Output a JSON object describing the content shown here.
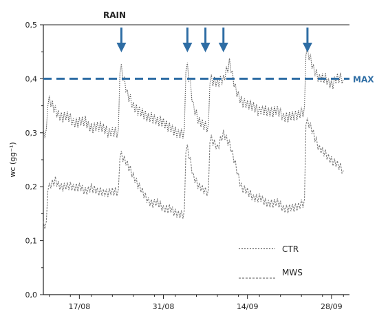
{
  "chart_data": {
    "type": "line",
    "title": "",
    "xlabel": "",
    "ylabel": "wc (gg⁻¹)",
    "ylim": [
      0.0,
      0.5
    ],
    "yticks": [
      "0,0",
      "0,1",
      "0,2",
      "0,3",
      "0,4",
      "0,5"
    ],
    "xlim": [
      "2008-08-11",
      "2008-10-01"
    ],
    "xticks": [
      {
        "date": "2008-08-17",
        "label": "17/08"
      },
      {
        "date": "2008-08-31",
        "label": "31/08"
      },
      {
        "date": "2008-09-14",
        "label": "14/09"
      },
      {
        "date": "2008-09-28",
        "label": "28/09"
      }
    ],
    "grid": false,
    "legend_position": "bottom-right",
    "reference_line": {
      "label": "MAX",
      "y": 0.4,
      "color": "#2e6da4"
    },
    "rain_label": "RAIN",
    "rain_events": [
      "2008-08-24",
      "2008-09-04",
      "2008-09-07",
      "2008-09-10",
      "2008-09-24"
    ],
    "arrow_color": "#2e6da4",
    "series": [
      {
        "name": "CTR",
        "color": "#555555",
        "points": [
          [
            "2008-08-11",
            0.3
          ],
          [
            "2008-08-12",
            0.36
          ],
          [
            "2008-08-13",
            0.34
          ],
          [
            "2008-08-14",
            0.33
          ],
          [
            "2008-08-15",
            0.33
          ],
          [
            "2008-08-16",
            0.32
          ],
          [
            "2008-08-17",
            0.32
          ],
          [
            "2008-08-18",
            0.32
          ],
          [
            "2008-08-19",
            0.31
          ],
          [
            "2008-08-20",
            0.31
          ],
          [
            "2008-08-21",
            0.31
          ],
          [
            "2008-08-22",
            0.3
          ],
          [
            "2008-08-23",
            0.3
          ],
          [
            "2008-08-24",
            0.42
          ],
          [
            "2008-08-25",
            0.37
          ],
          [
            "2008-08-26",
            0.35
          ],
          [
            "2008-08-27",
            0.34
          ],
          [
            "2008-08-28",
            0.33
          ],
          [
            "2008-08-29",
            0.33
          ],
          [
            "2008-08-30",
            0.32
          ],
          [
            "2008-08-31",
            0.32
          ],
          [
            "2008-09-01",
            0.31
          ],
          [
            "2008-09-02",
            0.3
          ],
          [
            "2008-09-03",
            0.3
          ],
          [
            "2008-09-04",
            0.42
          ],
          [
            "2008-09-05",
            0.35
          ],
          [
            "2008-09-06",
            0.32
          ],
          [
            "2008-09-07",
            0.31
          ],
          [
            "2008-09-08",
            0.4
          ],
          [
            "2008-09-09",
            0.39
          ],
          [
            "2008-09-10",
            0.4
          ],
          [
            "2008-09-11",
            0.43
          ],
          [
            "2008-09-12",
            0.38
          ],
          [
            "2008-09-13",
            0.36
          ],
          [
            "2008-09-14",
            0.35
          ],
          [
            "2008-09-15",
            0.35
          ],
          [
            "2008-09-16",
            0.34
          ],
          [
            "2008-09-17",
            0.34
          ],
          [
            "2008-09-18",
            0.34
          ],
          [
            "2008-09-19",
            0.34
          ],
          [
            "2008-09-20",
            0.33
          ],
          [
            "2008-09-21",
            0.33
          ],
          [
            "2008-09-22",
            0.33
          ],
          [
            "2008-09-23",
            0.34
          ],
          [
            "2008-09-24",
            0.45
          ],
          [
            "2008-09-25",
            0.42
          ],
          [
            "2008-09-26",
            0.4
          ],
          [
            "2008-09-27",
            0.4
          ],
          [
            "2008-09-28",
            0.39
          ],
          [
            "2008-09-29",
            0.4
          ],
          [
            "2008-09-30",
            0.4
          ]
        ]
      },
      {
        "name": "MWS",
        "color": "#777777",
        "points": [
          [
            "2008-08-11",
            0.13
          ],
          [
            "2008-08-12",
            0.2
          ],
          [
            "2008-08-13",
            0.21
          ],
          [
            "2008-08-14",
            0.2
          ],
          [
            "2008-08-15",
            0.2
          ],
          [
            "2008-08-16",
            0.2
          ],
          [
            "2008-08-17",
            0.2
          ],
          [
            "2008-08-18",
            0.19
          ],
          [
            "2008-08-19",
            0.2
          ],
          [
            "2008-08-20",
            0.19
          ],
          [
            "2008-08-21",
            0.19
          ],
          [
            "2008-08-22",
            0.19
          ],
          [
            "2008-08-23",
            0.19
          ],
          [
            "2008-08-24",
            0.26
          ],
          [
            "2008-08-25",
            0.24
          ],
          [
            "2008-08-26",
            0.22
          ],
          [
            "2008-08-27",
            0.2
          ],
          [
            "2008-08-28",
            0.18
          ],
          [
            "2008-08-29",
            0.17
          ],
          [
            "2008-08-30",
            0.17
          ],
          [
            "2008-08-31",
            0.16
          ],
          [
            "2008-09-01",
            0.16
          ],
          [
            "2008-09-02",
            0.15
          ],
          [
            "2008-09-03",
            0.15
          ],
          [
            "2008-09-04",
            0.27
          ],
          [
            "2008-09-05",
            0.22
          ],
          [
            "2008-09-06",
            0.2
          ],
          [
            "2008-09-07",
            0.19
          ],
          [
            "2008-09-08",
            0.29
          ],
          [
            "2008-09-09",
            0.27
          ],
          [
            "2008-09-10",
            0.3
          ],
          [
            "2008-09-11",
            0.28
          ],
          [
            "2008-09-12",
            0.24
          ],
          [
            "2008-09-13",
            0.2
          ],
          [
            "2008-09-14",
            0.19
          ],
          [
            "2008-09-15",
            0.18
          ],
          [
            "2008-09-16",
            0.18
          ],
          [
            "2008-09-17",
            0.17
          ],
          [
            "2008-09-18",
            0.17
          ],
          [
            "2008-09-19",
            0.17
          ],
          [
            "2008-09-20",
            0.16
          ],
          [
            "2008-09-21",
            0.16
          ],
          [
            "2008-09-22",
            0.16
          ],
          [
            "2008-09-23",
            0.17
          ],
          [
            "2008-09-24",
            0.32
          ],
          [
            "2008-09-25",
            0.3
          ],
          [
            "2008-09-26",
            0.27
          ],
          [
            "2008-09-27",
            0.26
          ],
          [
            "2008-09-28",
            0.25
          ],
          [
            "2008-09-29",
            0.24
          ],
          [
            "2008-09-30",
            0.23
          ]
        ]
      }
    ]
  }
}
